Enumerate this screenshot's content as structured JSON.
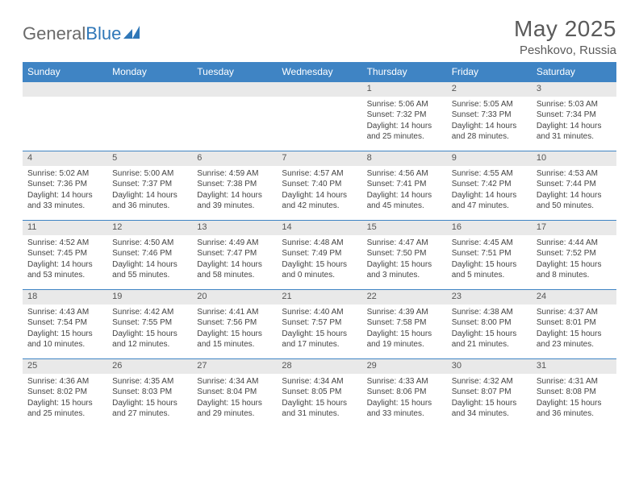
{
  "brand": {
    "part1": "General",
    "part2": "Blue"
  },
  "title": "May 2025",
  "location": "Peshkovo, Russia",
  "dayHeaders": [
    "Sunday",
    "Monday",
    "Tuesday",
    "Wednesday",
    "Thursday",
    "Friday",
    "Saturday"
  ],
  "colors": {
    "headerBg": "#3f84c4",
    "headerText": "#ffffff",
    "dayNumBg": "#e9e9e9",
    "ruleColor": "#3f84c4",
    "bodyText": "#444444",
    "titleText": "#5a5a5a"
  },
  "weeks": [
    [
      null,
      null,
      null,
      null,
      {
        "n": "1",
        "sr": "5:06 AM",
        "ss": "7:32 PM",
        "dl": "14 hours and 25 minutes."
      },
      {
        "n": "2",
        "sr": "5:05 AM",
        "ss": "7:33 PM",
        "dl": "14 hours and 28 minutes."
      },
      {
        "n": "3",
        "sr": "5:03 AM",
        "ss": "7:34 PM",
        "dl": "14 hours and 31 minutes."
      }
    ],
    [
      {
        "n": "4",
        "sr": "5:02 AM",
        "ss": "7:36 PM",
        "dl": "14 hours and 33 minutes."
      },
      {
        "n": "5",
        "sr": "5:00 AM",
        "ss": "7:37 PM",
        "dl": "14 hours and 36 minutes."
      },
      {
        "n": "6",
        "sr": "4:59 AM",
        "ss": "7:38 PM",
        "dl": "14 hours and 39 minutes."
      },
      {
        "n": "7",
        "sr": "4:57 AM",
        "ss": "7:40 PM",
        "dl": "14 hours and 42 minutes."
      },
      {
        "n": "8",
        "sr": "4:56 AM",
        "ss": "7:41 PM",
        "dl": "14 hours and 45 minutes."
      },
      {
        "n": "9",
        "sr": "4:55 AM",
        "ss": "7:42 PM",
        "dl": "14 hours and 47 minutes."
      },
      {
        "n": "10",
        "sr": "4:53 AM",
        "ss": "7:44 PM",
        "dl": "14 hours and 50 minutes."
      }
    ],
    [
      {
        "n": "11",
        "sr": "4:52 AM",
        "ss": "7:45 PM",
        "dl": "14 hours and 53 minutes."
      },
      {
        "n": "12",
        "sr": "4:50 AM",
        "ss": "7:46 PM",
        "dl": "14 hours and 55 minutes."
      },
      {
        "n": "13",
        "sr": "4:49 AM",
        "ss": "7:47 PM",
        "dl": "14 hours and 58 minutes."
      },
      {
        "n": "14",
        "sr": "4:48 AM",
        "ss": "7:49 PM",
        "dl": "15 hours and 0 minutes."
      },
      {
        "n": "15",
        "sr": "4:47 AM",
        "ss": "7:50 PM",
        "dl": "15 hours and 3 minutes."
      },
      {
        "n": "16",
        "sr": "4:45 AM",
        "ss": "7:51 PM",
        "dl": "15 hours and 5 minutes."
      },
      {
        "n": "17",
        "sr": "4:44 AM",
        "ss": "7:52 PM",
        "dl": "15 hours and 8 minutes."
      }
    ],
    [
      {
        "n": "18",
        "sr": "4:43 AM",
        "ss": "7:54 PM",
        "dl": "15 hours and 10 minutes."
      },
      {
        "n": "19",
        "sr": "4:42 AM",
        "ss": "7:55 PM",
        "dl": "15 hours and 12 minutes."
      },
      {
        "n": "20",
        "sr": "4:41 AM",
        "ss": "7:56 PM",
        "dl": "15 hours and 15 minutes."
      },
      {
        "n": "21",
        "sr": "4:40 AM",
        "ss": "7:57 PM",
        "dl": "15 hours and 17 minutes."
      },
      {
        "n": "22",
        "sr": "4:39 AM",
        "ss": "7:58 PM",
        "dl": "15 hours and 19 minutes."
      },
      {
        "n": "23",
        "sr": "4:38 AM",
        "ss": "8:00 PM",
        "dl": "15 hours and 21 minutes."
      },
      {
        "n": "24",
        "sr": "4:37 AM",
        "ss": "8:01 PM",
        "dl": "15 hours and 23 minutes."
      }
    ],
    [
      {
        "n": "25",
        "sr": "4:36 AM",
        "ss": "8:02 PM",
        "dl": "15 hours and 25 minutes."
      },
      {
        "n": "26",
        "sr": "4:35 AM",
        "ss": "8:03 PM",
        "dl": "15 hours and 27 minutes."
      },
      {
        "n": "27",
        "sr": "4:34 AM",
        "ss": "8:04 PM",
        "dl": "15 hours and 29 minutes."
      },
      {
        "n": "28",
        "sr": "4:34 AM",
        "ss": "8:05 PM",
        "dl": "15 hours and 31 minutes."
      },
      {
        "n": "29",
        "sr": "4:33 AM",
        "ss": "8:06 PM",
        "dl": "15 hours and 33 minutes."
      },
      {
        "n": "30",
        "sr": "4:32 AM",
        "ss": "8:07 PM",
        "dl": "15 hours and 34 minutes."
      },
      {
        "n": "31",
        "sr": "4:31 AM",
        "ss": "8:08 PM",
        "dl": "15 hours and 36 minutes."
      }
    ]
  ],
  "labels": {
    "sunrise": "Sunrise: ",
    "sunset": "Sunset: ",
    "daylight": "Daylight: "
  }
}
